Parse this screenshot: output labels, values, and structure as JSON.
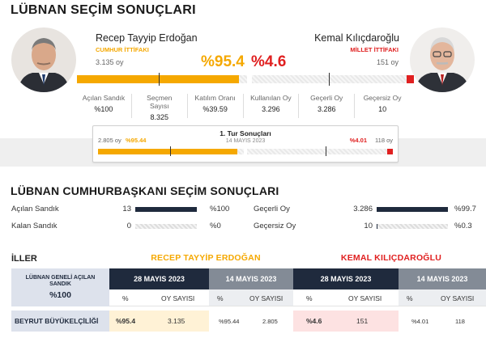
{
  "page_title": "LÜBNAN SEÇİM SONUÇLARI",
  "colors": {
    "erdogan": "#f5a800",
    "kilicdaroglu": "#e02020",
    "navy": "#1f2a3d",
    "gray_header": "#838b96"
  },
  "candidates": {
    "left": {
      "name": "Recep Tayyip Erdoğan",
      "alliance": "CUMHUR İTTİFAKI",
      "votes": "3.135 oy",
      "pct": "%95.4",
      "pct_value": 95.4,
      "avatar_icon": "erdogan-portrait"
    },
    "right": {
      "name": "Kemal Kılıçdaroğlu",
      "alliance": "MİLLET İTTİFAKI",
      "votes": "151 oy",
      "pct": "%4.6",
      "pct_value": 4.6,
      "avatar_icon": "kilicdaroglu-portrait"
    }
  },
  "stats": [
    {
      "label": "Açılan Sandık",
      "value": "%100"
    },
    {
      "label": "Seçmen Sayısı",
      "value": "8.325"
    },
    {
      "label": "Katılım Oranı",
      "value": "%39.59"
    },
    {
      "label": "Kullanılan Oy",
      "value": "3.296"
    },
    {
      "label": "Geçerli Oy",
      "value": "3.286"
    },
    {
      "label": "Geçersiz Oy",
      "value": "10"
    }
  ],
  "first_round": {
    "title": "1. Tur Sonuçları",
    "date": "14 MAYIS 2023",
    "left_votes": "2.805 oy",
    "left_pct": "%95.44",
    "left_pct_value": 95.44,
    "right_pct": "%4.01",
    "right_pct_value": 4.01,
    "right_votes": "118 oy"
  },
  "section2_title": "LÜBNAN CUMHURBAŞKANI SEÇİM SONUÇLARI",
  "summary_left": [
    {
      "label": "Açılan Sandık",
      "num": "13",
      "pct": "%100",
      "fill": 1.0
    },
    {
      "label": "Kalan Sandık",
      "num": "0",
      "pct": "%0",
      "fill": 0.0
    }
  ],
  "summary_right": [
    {
      "label": "Geçerli Oy",
      "num": "3.286",
      "pct": "%99.7",
      "fill": 0.997
    },
    {
      "label": "Geçersiz Oy",
      "num": "10",
      "pct": "%0.3",
      "fill": 0.003
    }
  ],
  "table": {
    "section_label": "İLLER",
    "left_candidate": "RECEP TAYYİP ERDOĞAN",
    "right_candidate": "KEMAL KILIÇDAROĞLU",
    "corner_label": "LÜBNAN GENELİ AÇILAN SANDIK",
    "corner_value": "%100",
    "date_new": "28 MAYIS 2023",
    "date_old": "14 MAYIS 2023",
    "col_pct": "%",
    "col_votes": "OY SAYISI",
    "rows": [
      {
        "name": "BEYRUT BÜYÜKELÇİLİĞİ",
        "e_new_pct": "%95.4",
        "e_new_votes": "3.135",
        "e_old_pct": "%95.44",
        "e_old_votes": "2.805",
        "k_new_pct": "%4.6",
        "k_new_votes": "151",
        "k_old_pct": "%4.01",
        "k_old_votes": "118"
      }
    ]
  }
}
